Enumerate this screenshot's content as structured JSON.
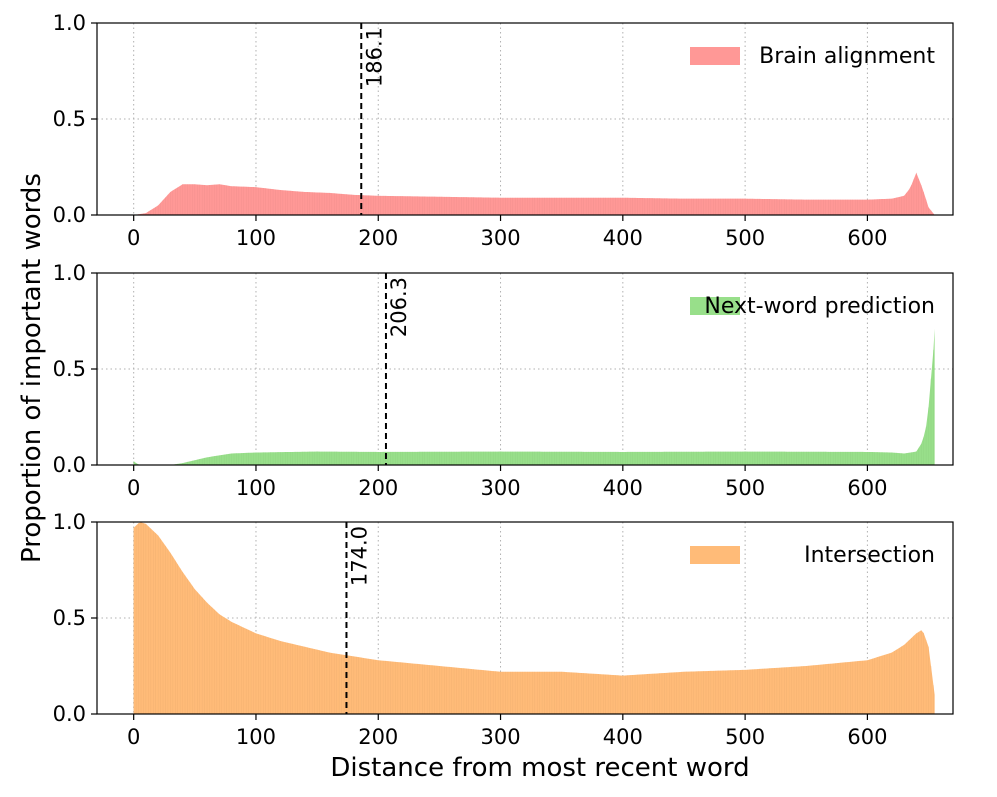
{
  "figure": {
    "ylabel": "Proportion of important words",
    "xlabel": "Distance from most recent word"
  },
  "chart_data": [
    {
      "type": "area",
      "legend": "Brain alignment",
      "color": "#ff9896",
      "xlim": [
        -30,
        670
      ],
      "ylim": [
        0,
        1.0
      ],
      "xticks": [
        0,
        100,
        200,
        300,
        400,
        500,
        600
      ],
      "xtick_labels": [
        "0",
        "100",
        "200",
        "300",
        "400",
        "500",
        "600"
      ],
      "yticks": [
        0,
        0.5,
        1.0
      ],
      "ytick_labels": [
        "0.0",
        "0.5",
        "1.0"
      ],
      "grid": true,
      "legend_position": "top-right",
      "x": [
        0,
        10,
        20,
        30,
        40,
        50,
        60,
        70,
        80,
        100,
        120,
        140,
        160,
        180,
        200,
        250,
        300,
        350,
        400,
        450,
        500,
        550,
        600,
        620,
        630,
        635,
        640,
        645,
        650,
        655
      ],
      "values": [
        0.0,
        0.01,
        0.05,
        0.12,
        0.16,
        0.16,
        0.155,
        0.16,
        0.15,
        0.145,
        0.13,
        0.12,
        0.115,
        0.105,
        0.1,
        0.095,
        0.09,
        0.09,
        0.09,
        0.085,
        0.085,
        0.08,
        0.08,
        0.085,
        0.1,
        0.14,
        0.22,
        0.14,
        0.04,
        0.0
      ],
      "vline": {
        "x": 186.1,
        "label": "186.1"
      }
    },
    {
      "type": "area",
      "legend": "Next-word prediction",
      "color": "#98df8a",
      "xlim": [
        -30,
        670
      ],
      "ylim": [
        0,
        1.0
      ],
      "xticks": [
        0,
        100,
        200,
        300,
        400,
        500,
        600
      ],
      "xtick_labels": [
        "0",
        "100",
        "200",
        "300",
        "400",
        "500",
        "600"
      ],
      "yticks": [
        0,
        0.5,
        1.0
      ],
      "ytick_labels": [
        "0.0",
        "0.5",
        "1.0"
      ],
      "grid": true,
      "legend_position": "top-right",
      "x": [
        0,
        2,
        5,
        10,
        20,
        30,
        40,
        50,
        60,
        70,
        80,
        100,
        150,
        200,
        300,
        400,
        500,
        600,
        620,
        630,
        640,
        645,
        648,
        650,
        652,
        654,
        655
      ],
      "values": [
        0.02,
        0.01,
        0.0,
        0.0,
        0.0,
        0.0,
        0.01,
        0.025,
        0.04,
        0.05,
        0.06,
        0.065,
        0.07,
        0.068,
        0.07,
        0.068,
        0.07,
        0.068,
        0.065,
        0.06,
        0.07,
        0.12,
        0.2,
        0.3,
        0.45,
        0.6,
        0.71
      ],
      "vline": {
        "x": 206.3,
        "label": "206.3"
      }
    },
    {
      "type": "area",
      "legend": "Intersection",
      "color": "#ffbb78",
      "xlim": [
        -30,
        670
      ],
      "ylim": [
        0,
        1.0
      ],
      "xticks": [
        0,
        100,
        200,
        300,
        400,
        500,
        600
      ],
      "xtick_labels": [
        "0",
        "100",
        "200",
        "300",
        "400",
        "500",
        "600"
      ],
      "yticks": [
        0,
        0.5,
        1.0
      ],
      "ytick_labels": [
        "0.0",
        "0.5",
        "1.0"
      ],
      "grid": true,
      "legend_position": "top-right",
      "x": [
        0,
        5,
        10,
        20,
        30,
        40,
        50,
        60,
        70,
        80,
        100,
        120,
        140,
        160,
        180,
        200,
        250,
        300,
        350,
        400,
        450,
        500,
        550,
        600,
        620,
        630,
        640,
        645,
        650,
        655
      ],
      "values": [
        0.97,
        1.0,
        0.99,
        0.93,
        0.84,
        0.74,
        0.65,
        0.58,
        0.52,
        0.48,
        0.42,
        0.38,
        0.35,
        0.32,
        0.3,
        0.28,
        0.25,
        0.22,
        0.22,
        0.2,
        0.22,
        0.23,
        0.25,
        0.28,
        0.32,
        0.36,
        0.42,
        0.44,
        0.35,
        0.1
      ],
      "vline": {
        "x": 174.0,
        "label": "174.0"
      }
    }
  ]
}
